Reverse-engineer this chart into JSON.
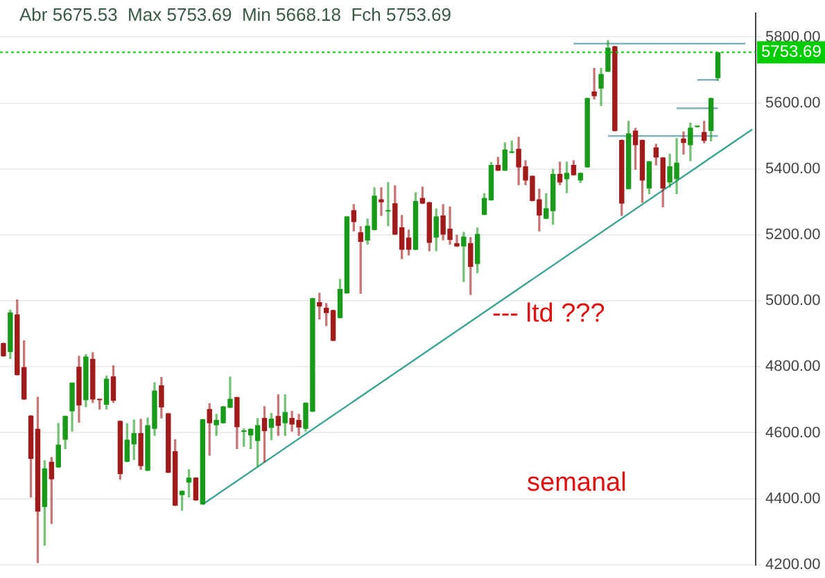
{
  "chart_data": {
    "type": "candlestick",
    "title": "Abr 5675.53  Max 5753.69  Min 5668.18  Fch 5753.69",
    "annotations": [
      "--- ltd ???",
      "semanal"
    ],
    "categories": [
      null,
      null,
      null,
      null,
      null,
      null,
      null,
      null,
      null,
      null,
      null,
      null,
      null,
      null,
      null,
      null,
      null,
      null,
      null,
      null,
      null,
      null,
      null,
      null,
      null,
      null,
      null,
      null,
      null,
      null,
      null,
      null,
      null,
      null,
      null,
      null,
      null,
      null,
      null,
      null,
      null,
      null,
      null,
      null,
      null,
      null,
      null,
      null,
      null,
      null,
      null,
      null,
      null,
      null,
      null,
      null,
      null,
      null,
      null,
      null,
      null,
      null,
      null,
      null,
      null,
      null,
      null,
      null,
      null,
      null,
      null,
      null,
      null,
      null,
      null,
      null,
      null,
      null,
      null,
      null,
      null,
      null,
      null,
      null,
      null,
      null,
      null,
      null,
      null,
      null,
      null,
      null,
      null,
      null,
      null,
      null,
      null,
      null,
      null,
      null,
      null,
      null,
      null,
      null,
      null,
      null,
      null,
      null,
      null,
      null
    ],
    "ohlc": [
      [
        4872,
        4872,
        4832,
        4832
      ],
      [
        4845,
        4972,
        4825,
        4965
      ],
      [
        4959,
        5003,
        4775,
        4775
      ],
      [
        4799,
        4879,
        4701,
        4701
      ],
      [
        4652,
        4652,
        4405,
        4521
      ],
      [
        4612,
        4708,
        4206,
        4361
      ],
      [
        4375,
        4515,
        4259,
        4492
      ],
      [
        4512,
        4525,
        4325,
        4459
      ],
      [
        4495,
        4628,
        4495,
        4564
      ],
      [
        4579,
        4651,
        4552,
        4651
      ],
      [
        4665,
        4752,
        4605,
        4752
      ],
      [
        4800,
        4832,
        4632,
        4683
      ],
      [
        4699,
        4837,
        4679,
        4831
      ],
      [
        4824,
        4843,
        4692,
        4701
      ],
      [
        4700,
        4700,
        4672,
        4699
      ],
      [
        4685,
        4772,
        4672,
        4764
      ],
      [
        4771,
        4803,
        4692,
        4697
      ],
      [
        4636,
        4636,
        4459,
        4475
      ],
      [
        4512,
        4628,
        4512,
        4579
      ],
      [
        4565,
        4639,
        4519,
        4599
      ],
      [
        4599,
        4641,
        4489,
        4499
      ],
      [
        4485,
        4645,
        4485,
        4623
      ],
      [
        4612,
        4752,
        4592,
        4728
      ],
      [
        4744,
        4768,
        4645,
        4677
      ],
      [
        4659,
        4659,
        4479,
        4479
      ],
      [
        4544,
        4579,
        4379,
        4379
      ],
      [
        4411,
        4424,
        4365,
        4424
      ],
      [
        4449,
        4488,
        4405,
        4464
      ],
      [
        4464,
        4464,
        4395,
        4395
      ],
      [
        4383,
        4641,
        4383,
        4641
      ],
      [
        4672,
        4688,
        4532,
        4629
      ],
      [
        4623,
        4656,
        4592,
        4639
      ],
      [
        4629,
        4680,
        4629,
        4680
      ],
      [
        4676,
        4769,
        4676,
        4703
      ],
      [
        4708,
        4708,
        4552,
        4617
      ],
      [
        4603,
        4612,
        4559,
        4604
      ],
      [
        4592,
        4612,
        4552,
        4612
      ],
      [
        4575,
        4643,
        4499,
        4623
      ],
      [
        4645,
        4679,
        4512,
        4605
      ],
      [
        4615,
        4659,
        4579,
        4643
      ],
      [
        4651,
        4715,
        4592,
        4621
      ],
      [
        4629,
        4715,
        4592,
        4663
      ],
      [
        4645,
        4665,
        4605,
        4625
      ],
      [
        4639,
        4656,
        4592,
        4616
      ],
      [
        4612,
        4691,
        4605,
        4691
      ],
      [
        4664,
        5008,
        4664,
        5008
      ],
      [
        4996,
        5023,
        4945,
        4983
      ],
      [
        4979,
        4992,
        4925,
        4963
      ],
      [
        4972,
        4972,
        4879,
        4879
      ],
      [
        4948,
        5065,
        4948,
        5036
      ],
      [
        5023,
        5256,
        5023,
        5256
      ],
      [
        5275,
        5292,
        5212,
        5239
      ],
      [
        5208,
        5225,
        5023,
        5179
      ],
      [
        5183,
        5248,
        5172,
        5228
      ],
      [
        5215,
        5343,
        5215,
        5319
      ],
      [
        5308,
        5343,
        5259,
        5299
      ],
      [
        5271,
        5359,
        5228,
        5275
      ],
      [
        5296,
        5349,
        5201,
        5201
      ],
      [
        5223,
        5259,
        5128,
        5155
      ],
      [
        5192,
        5215,
        5139,
        5155
      ],
      [
        5155,
        5328,
        5155,
        5303
      ],
      [
        5312,
        5345,
        5295,
        5295
      ],
      [
        5299,
        5299,
        5152,
        5176
      ],
      [
        5192,
        5279,
        5152,
        5256
      ],
      [
        5259,
        5292,
        5185,
        5201
      ],
      [
        5219,
        5285,
        5172,
        5185
      ],
      [
        5175,
        5199,
        5165,
        5165
      ],
      [
        5165,
        5208,
        5059,
        5195
      ],
      [
        5175,
        5192,
        5019,
        5103
      ],
      [
        5112,
        5221,
        5085,
        5203
      ],
      [
        5261,
        5325,
        5261,
        5312
      ],
      [
        5305,
        5419,
        5305,
        5412
      ],
      [
        5412,
        5435,
        5395,
        5395
      ],
      [
        5395,
        5479,
        5395,
        5459
      ],
      [
        5449,
        5485,
        5449,
        5451
      ],
      [
        5461,
        5496,
        5352,
        5405
      ],
      [
        5408,
        5425,
        5352,
        5365
      ],
      [
        5379,
        5379,
        5303,
        5303
      ],
      [
        5308,
        5339,
        5212,
        5259
      ],
      [
        5249,
        5325,
        5249,
        5281
      ],
      [
        5272,
        5399,
        5232,
        5385
      ],
      [
        5385,
        5421,
        5352,
        5359
      ],
      [
        5369,
        5421,
        5328,
        5388
      ],
      [
        5412,
        5425,
        5381,
        5381
      ],
      [
        5365,
        5388,
        5359,
        5388
      ],
      [
        5405,
        5615,
        5405,
        5615
      ],
      [
        5635,
        5705,
        5612,
        5621
      ],
      [
        5644,
        5705,
        5592,
        5688
      ],
      [
        5695,
        5789,
        5695,
        5768
      ],
      [
        5772,
        5772,
        5515,
        5515
      ],
      [
        5488,
        5488,
        5259,
        5295
      ],
      [
        5339,
        5545,
        5339,
        5508
      ],
      [
        5516,
        5523,
        5399,
        5472
      ],
      [
        5488,
        5488,
        5299,
        5365
      ],
      [
        5341,
        5423,
        5325,
        5423
      ],
      [
        5465,
        5475,
        5412,
        5435
      ],
      [
        5435,
        5435,
        5285,
        5341
      ],
      [
        5359,
        5445,
        5345,
        5408
      ],
      [
        5369,
        5492,
        5325,
        5419
      ],
      [
        5492,
        5512,
        5445,
        5479
      ],
      [
        5472,
        5539,
        5425,
        5525
      ],
      [
        5527,
        5529,
        5527,
        5529
      ],
      [
        5512,
        5545,
        5479,
        5485
      ],
      [
        5515,
        5615,
        5485,
        5615
      ],
      [
        5675.53,
        5753.69,
        5668.18,
        5753.69
      ],
      null,
      null,
      null,
      null,
      null
    ],
    "colors": [
      "#a11b1b",
      "#1a9a1a",
      "#a11b1b",
      "#a11b1b",
      "#a11b1b",
      "#a11b1b",
      "#1a9a1a",
      "#a11b1b",
      "#1a9a1a",
      "#1a9a1a",
      "#1a9a1a",
      "#a11b1b",
      "#1a9a1a",
      "#a11b1b",
      "#a11b1b",
      "#1a9a1a",
      "#a11b1b",
      "#a11b1b",
      "#1a9a1a",
      "#1a9a1a",
      "#a11b1b",
      "#1a9a1a",
      "#1a9a1a",
      "#a11b1b",
      "#a11b1b",
      "#a11b1b",
      "#1a9a1a",
      "#1a9a1a",
      "#a11b1b",
      "#1a9a1a",
      "#a11b1b",
      "#1a9a1a",
      "#1a9a1a",
      "#1a9a1a",
      "#a11b1b",
      "#1a9a1a",
      "#1a9a1a",
      "#1a9a1a",
      "#a11b1b",
      "#1a9a1a",
      "#a11b1b",
      "#1a9a1a",
      "#a11b1b",
      "#a11b1b",
      "#1a9a1a",
      "#1a9a1a",
      "#a11b1b",
      "#a11b1b",
      "#a11b1b",
      "#1a9a1a",
      "#1a9a1a",
      "#a11b1b",
      "#a11b1b",
      "#1a9a1a",
      "#1a9a1a",
      "#a11b1b",
      "#1a9a1a",
      "#a11b1b",
      "#a11b1b",
      "#a11b1b",
      "#1a9a1a",
      "#a11b1b",
      "#a11b1b",
      "#1a9a1a",
      "#a11b1b",
      "#a11b1b",
      "#a11b1b",
      "#1a9a1a",
      "#a11b1b",
      "#1a9a1a",
      "#1a9a1a",
      "#1a9a1a",
      "#a11b1b",
      "#1a9a1a",
      "#1a9a1a",
      "#a11b1b",
      "#a11b1b",
      "#a11b1b",
      "#a11b1b",
      "#1a9a1a",
      "#1a9a1a",
      "#a11b1b",
      "#1a9a1a",
      "#a11b1b",
      "#1a9a1a",
      "#1a9a1a",
      "#a11b1b",
      "#1a9a1a",
      "#1a9a1a",
      "#a11b1b",
      "#a11b1b",
      "#1a9a1a",
      "#a11b1b",
      "#a11b1b",
      "#1a9a1a",
      "#a11b1b",
      "#a11b1b",
      "#1a9a1a",
      "#1a9a1a",
      "#a11b1b",
      "#1a9a1a",
      "#1a9a1a",
      "#a11b1b",
      "#1a9a1a",
      "#1a9a1a",
      null,
      null,
      null,
      null,
      null
    ],
    "series": [
      {
        "type": "line",
        "color": "#3aa394",
        "values": [
          null,
          null,
          null,
          null,
          null,
          null,
          null,
          null,
          null,
          null,
          null,
          null,
          null,
          null,
          null,
          null,
          null,
          null,
          null,
          null,
          null,
          null,
          null,
          null,
          null,
          null,
          null,
          null,
          null,
          4383,
          null,
          null,
          null,
          null,
          null,
          null,
          null,
          null,
          null,
          null,
          null,
          null,
          null,
          null,
          null,
          null,
          null,
          null,
          null,
          null,
          null,
          null,
          null,
          null,
          null,
          null,
          null,
          null,
          null,
          null,
          null,
          null,
          null,
          null,
          null,
          null,
          null,
          null,
          null,
          null,
          null,
          null,
          null,
          null,
          null,
          null,
          null,
          null,
          null,
          null,
          null,
          null,
          null,
          null,
          null,
          null,
          null,
          null,
          null,
          null,
          null,
          null,
          null,
          null,
          null,
          null,
          null,
          null,
          null,
          null,
          null,
          null,
          null,
          null,
          null,
          null,
          null,
          null,
          null,
          5520
        ]
      },
      {
        "type": "line",
        "color": "#7fb3bb",
        "values": [
          null,
          null,
          null,
          null,
          null,
          null,
          null,
          null,
          null,
          null,
          null,
          null,
          null,
          null,
          null,
          null,
          null,
          null,
          null,
          null,
          null,
          null,
          null,
          null,
          null,
          null,
          null,
          null,
          null,
          null,
          null,
          null,
          null,
          null,
          null,
          null,
          null,
          null,
          null,
          null,
          null,
          null,
          null,
          null,
          null,
          null,
          null,
          null,
          null,
          null,
          null,
          null,
          null,
          null,
          null,
          null,
          null,
          null,
          null,
          null,
          null,
          null,
          null,
          null,
          null,
          null,
          null,
          null,
          null,
          null,
          null,
          null,
          null,
          null,
          null,
          null,
          null,
          null,
          null,
          null,
          null,
          null,
          null,
          5780,
          null,
          null,
          null,
          null,
          null,
          null,
          null,
          null,
          null,
          null,
          null,
          null,
          null,
          null,
          null,
          null,
          null,
          null,
          null,
          null,
          null,
          null,
          null,
          null,
          5780,
          null
        ]
      },
      {
        "type": "line",
        "color": "#7fb3bb",
        "values": [
          null,
          null,
          null,
          null,
          null,
          null,
          null,
          null,
          null,
          null,
          null,
          null,
          null,
          null,
          null,
          null,
          null,
          null,
          null,
          null,
          null,
          null,
          null,
          null,
          null,
          null,
          null,
          null,
          null,
          null,
          null,
          null,
          null,
          null,
          null,
          null,
          null,
          null,
          null,
          null,
          null,
          null,
          null,
          null,
          null,
          null,
          null,
          null,
          null,
          null,
          null,
          null,
          null,
          null,
          null,
          null,
          null,
          null,
          null,
          null,
          null,
          null,
          null,
          null,
          null,
          null,
          null,
          null,
          null,
          null,
          null,
          null,
          null,
          null,
          null,
          null,
          null,
          null,
          null,
          null,
          null,
          null,
          null,
          null,
          null,
          null,
          null,
          null,
          5500,
          null,
          null,
          null,
          null,
          null,
          null,
          null,
          null,
          null,
          null,
          null,
          null,
          null,
          null,
          null,
          5500,
          null,
          null,
          null,
          null,
          null
        ]
      },
      {
        "type": "line",
        "color": "#7fb3bb",
        "values": [
          null,
          null,
          null,
          null,
          null,
          null,
          null,
          null,
          null,
          null,
          null,
          null,
          null,
          null,
          null,
          null,
          null,
          null,
          null,
          null,
          null,
          null,
          null,
          null,
          null,
          null,
          null,
          null,
          null,
          null,
          null,
          null,
          null,
          null,
          null,
          null,
          null,
          null,
          null,
          null,
          null,
          null,
          null,
          null,
          null,
          null,
          null,
          null,
          null,
          null,
          null,
          null,
          null,
          null,
          null,
          null,
          null,
          null,
          null,
          null,
          null,
          null,
          null,
          null,
          null,
          null,
          null,
          null,
          null,
          null,
          null,
          null,
          null,
          null,
          null,
          null,
          null,
          null,
          null,
          null,
          null,
          null,
          null,
          null,
          null,
          null,
          null,
          null,
          null,
          null,
          null,
          null,
          null,
          null,
          null,
          null,
          null,
          null,
          5584,
          null,
          null,
          null,
          null,
          null,
          5584,
          null,
          null,
          null,
          null,
          null
        ]
      },
      {
        "type": "line",
        "color": "#7fb3bb",
        "values": [
          null,
          null,
          null,
          null,
          null,
          null,
          null,
          null,
          null,
          null,
          null,
          null,
          null,
          null,
          null,
          null,
          null,
          null,
          null,
          null,
          null,
          null,
          null,
          null,
          null,
          null,
          null,
          null,
          null,
          null,
          null,
          null,
          null,
          null,
          null,
          null,
          null,
          null,
          null,
          null,
          null,
          null,
          null,
          null,
          null,
          null,
          null,
          null,
          null,
          null,
          null,
          null,
          null,
          null,
          null,
          null,
          null,
          null,
          null,
          null,
          null,
          null,
          null,
          null,
          null,
          null,
          null,
          null,
          null,
          null,
          null,
          null,
          null,
          null,
          null,
          null,
          null,
          null,
          null,
          null,
          null,
          null,
          null,
          null,
          null,
          null,
          null,
          null,
          null,
          null,
          null,
          null,
          null,
          null,
          null,
          null,
          null,
          null,
          null,
          null,
          null,
          5670,
          null,
          null,
          5670,
          null,
          null,
          null,
          null,
          null
        ]
      }
    ],
    "ref_lines": [
      {
        "axis": "y",
        "value": 5753.69,
        "label": "5753.69",
        "color": "#00cc00",
        "line_style": "dotted"
      }
    ],
    "ylim": [
      4200,
      5872
    ],
    "yticks": [
      {
        "value": 4200,
        "label": "4200.00"
      },
      {
        "value": 4400,
        "label": "4400.00"
      },
      {
        "value": 4600,
        "label": "4600.00"
      },
      {
        "value": 4800,
        "label": "4800.00"
      },
      {
        "value": 5000,
        "label": "5000.00"
      },
      {
        "value": 5200,
        "label": "5200.00"
      },
      {
        "value": 5400,
        "label": "5400.00"
      },
      {
        "value": 5600,
        "label": "5600.00"
      },
      {
        "value": 5800,
        "label": "5800.00"
      }
    ],
    "grid": "y",
    "legend": false,
    "tick_labels": "y"
  }
}
